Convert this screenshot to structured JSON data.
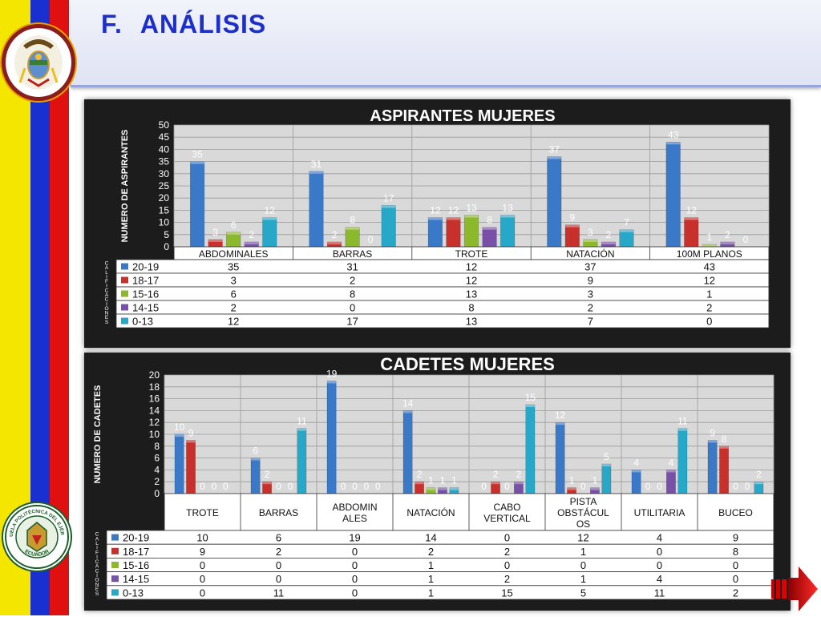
{
  "page": {
    "title_number": "F.",
    "title_text": "ANÁLISIS",
    "colors": {
      "yellow": "#f5e600",
      "blue": "#1a2fd0",
      "red": "#e01010",
      "title_blue": "#1c2fc8"
    },
    "seal_bottom_text_top": "ESCUELA POLITÉCNICA DEL EJÉRCITO",
    "seal_bottom_text_bottom": "ECUADOR",
    "icons": [
      "ecuador-coat-of-arms-icon",
      "espe-seal-icon",
      "next-arrow-icon"
    ]
  },
  "chart_data": [
    {
      "type": "bar",
      "title": "ASPIRANTES MUJERES",
      "ylabel": "NUMERO DE ASPIRANTES",
      "legend_label": "CALIFICACIONES",
      "ylim": [
        0,
        50
      ],
      "yticks": [
        0,
        5,
        10,
        15,
        20,
        25,
        30,
        35,
        40,
        45,
        50
      ],
      "categories": [
        "ABDOMINALES",
        "BARRAS",
        "TROTE",
        "NATACIÓN",
        "100M PLANOS"
      ],
      "series": [
        {
          "name": "20-19",
          "color": "#3a78c8",
          "values": [
            35,
            31,
            12,
            37,
            43
          ]
        },
        {
          "name": "18-17",
          "color": "#c8302c",
          "values": [
            3,
            2,
            12,
            9,
            12
          ]
        },
        {
          "name": "15-16",
          "color": "#8cb82c",
          "values": [
            6,
            8,
            13,
            3,
            1
          ]
        },
        {
          "name": "14-15",
          "color": "#7850a8",
          "values": [
            2,
            0,
            8,
            2,
            2
          ]
        },
        {
          "name": "0-13",
          "color": "#28a8c8",
          "values": [
            12,
            17,
            13,
            7,
            0
          ]
        }
      ],
      "grid": true,
      "legend": "data-table"
    },
    {
      "type": "bar",
      "title": "CADETES MUJERES",
      "ylabel": "NUMERO DE CADETES",
      "legend_label": "CALIFICACIONES",
      "ylim": [
        0,
        20
      ],
      "yticks": [
        0,
        2,
        4,
        6,
        8,
        10,
        12,
        14,
        16,
        18,
        20
      ],
      "categories": [
        "TROTE",
        "BARRAS",
        "ABDOMIN\nALES",
        "NATACIÓN",
        "CABO\nVERTICAL",
        "PISTA\nOBSTÁCUL\nOS",
        "UTILITARIA",
        "BUCEO"
      ],
      "series": [
        {
          "name": "20-19",
          "color": "#3a78c8",
          "values": [
            10,
            6,
            19,
            14,
            0,
            12,
            4,
            9
          ]
        },
        {
          "name": "18-17",
          "color": "#c8302c",
          "values": [
            9,
            2,
            0,
            2,
            2,
            1,
            0,
            8
          ]
        },
        {
          "name": "15-16",
          "color": "#8cb82c",
          "values": [
            0,
            0,
            0,
            1,
            0,
            0,
            0,
            0
          ]
        },
        {
          "name": "14-15",
          "color": "#7850a8",
          "values": [
            0,
            0,
            0,
            1,
            2,
            1,
            4,
            0
          ]
        },
        {
          "name": "0-13",
          "color": "#28a8c8",
          "values": [
            0,
            11,
            0,
            1,
            15,
            5,
            11,
            2
          ]
        }
      ],
      "grid": true,
      "legend": "data-table"
    }
  ]
}
